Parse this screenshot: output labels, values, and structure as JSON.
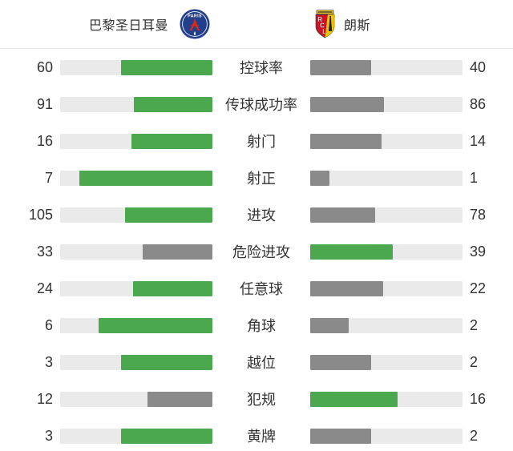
{
  "header": {
    "home": {
      "name": "巴黎圣日耳曼",
      "crest_text": "PARIS"
    },
    "away": {
      "name": "朗斯",
      "crest_text": "RCL"
    }
  },
  "colors": {
    "win": "#4BA84F",
    "lose": "#8A8A8A",
    "track": "#EAEAEA",
    "text": "#333333",
    "divider": "#E7E7E7",
    "psg_navy": "#233E8B",
    "psg_red": "#DA291C",
    "rcl_red": "#CE1126",
    "rcl_gold": "#F2C400"
  },
  "chart_data": {
    "type": "bar",
    "categories": [
      "控球率",
      "传球成功率",
      "射门",
      "射正",
      "进攻",
      "危险进攻",
      "任意球",
      "角球",
      "越位",
      "犯规",
      "黄牌"
    ],
    "series": [
      {
        "name": "巴黎圣日耳曼",
        "values": [
          60,
          91,
          16,
          7,
          105,
          33,
          24,
          6,
          3,
          12,
          3
        ]
      },
      {
        "name": "朗斯",
        "values": [
          40,
          86,
          14,
          1,
          78,
          39,
          22,
          2,
          2,
          16,
          2
        ]
      }
    ],
    "bar_rule": "fill width = value / (home + away); the higher value is green, the lower is gray; bars grow outward from center",
    "legend_position": "none",
    "grid": false
  }
}
